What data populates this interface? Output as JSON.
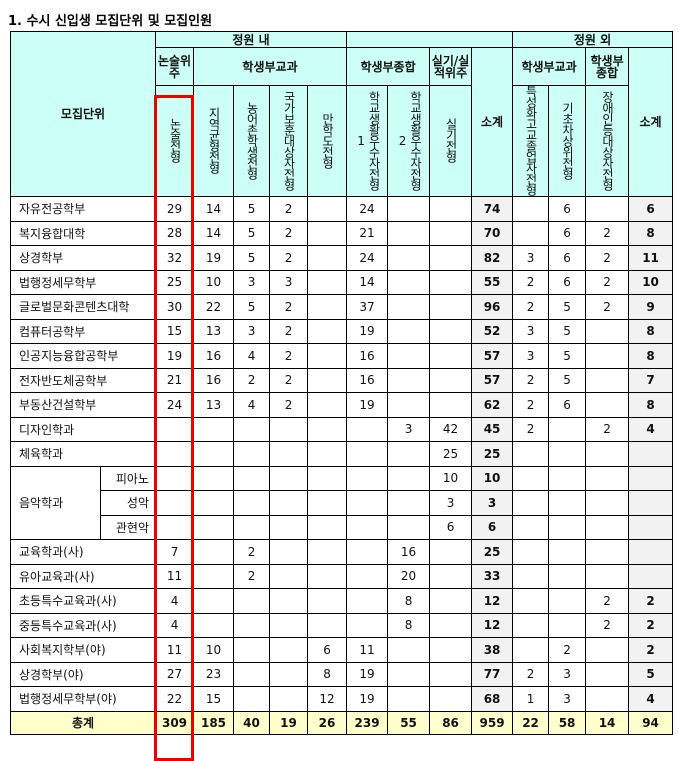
{
  "title": "1. 수시 신입생 모집단위 및 모집인원",
  "header": {
    "unit": "모집단위",
    "in_quota": "정원 내",
    "out_quota": "정원 외",
    "essay_group": "논술위주",
    "record_subject": "학생부교과",
    "record_comprehensive": "학생부종합",
    "practical": "실기/실적위주",
    "subtotal": "소계",
    "out_record_subject": "학생부교과",
    "out_record_comprehensive": "학생부종합",
    "out_subtotal": "소계",
    "cols": [
      "논술전형",
      "지역균형전형",
      "농어촌학생전형",
      "국가보훈대상자전형",
      "만학도전형",
      "학교생활우수자전형1",
      "학교생활우수자전형2",
      "실기전형",
      "특성화고교졸업자전형",
      "기초차상위전형",
      "장애인등대상자전형"
    ]
  },
  "rows": [
    {
      "name": "자유전공학부",
      "v": [
        "29",
        "14",
        "5",
        "2",
        "",
        "24",
        "",
        "",
        "74",
        "",
        "6",
        "",
        "6"
      ]
    },
    {
      "name": "복지융합대학",
      "v": [
        "28",
        "14",
        "5",
        "2",
        "",
        "21",
        "",
        "",
        "70",
        "",
        "6",
        "2",
        "8"
      ]
    },
    {
      "name": "상경학부",
      "v": [
        "32",
        "19",
        "5",
        "2",
        "",
        "24",
        "",
        "",
        "82",
        "3",
        "6",
        "2",
        "11"
      ]
    },
    {
      "name": "법행정세무학부",
      "v": [
        "25",
        "10",
        "3",
        "3",
        "",
        "14",
        "",
        "",
        "55",
        "2",
        "6",
        "2",
        "10"
      ]
    },
    {
      "name": "글로벌문화콘텐츠대학",
      "v": [
        "30",
        "22",
        "5",
        "2",
        "",
        "37",
        "",
        "",
        "96",
        "2",
        "5",
        "2",
        "9"
      ]
    },
    {
      "name": "컴퓨터공학부",
      "v": [
        "15",
        "13",
        "3",
        "2",
        "",
        "19",
        "",
        "",
        "52",
        "3",
        "5",
        "",
        "8"
      ]
    },
    {
      "name": "인공지능융합공학부",
      "v": [
        "19",
        "16",
        "4",
        "2",
        "",
        "16",
        "",
        "",
        "57",
        "3",
        "5",
        "",
        "8"
      ]
    },
    {
      "name": "전자반도체공학부",
      "v": [
        "21",
        "16",
        "2",
        "2",
        "",
        "16",
        "",
        "",
        "57",
        "2",
        "5",
        "",
        "7"
      ]
    },
    {
      "name": "부동산건설학부",
      "v": [
        "24",
        "13",
        "4",
        "2",
        "",
        "19",
        "",
        "",
        "62",
        "2",
        "6",
        "",
        "8"
      ]
    },
    {
      "name": "디자인학과",
      "v": [
        "",
        "",
        "",
        "",
        "",
        "",
        "3",
        "42",
        "45",
        "2",
        "",
        "2",
        "4"
      ]
    },
    {
      "name": "체육학과",
      "v": [
        "",
        "",
        "",
        "",
        "",
        "",
        "",
        "25",
        "25",
        "",
        "",
        "",
        ""
      ]
    },
    {
      "name": "음악학과",
      "sub": "피아노",
      "v": [
        "",
        "",
        "",
        "",
        "",
        "",
        "",
        "10",
        "10",
        "",
        "",
        "",
        ""
      ]
    },
    {
      "name": "",
      "sub": "성악",
      "v": [
        "",
        "",
        "",
        "",
        "",
        "",
        "",
        "3",
        "3",
        "",
        "",
        "",
        ""
      ]
    },
    {
      "name": "",
      "sub": "관현악",
      "v": [
        "",
        "",
        "",
        "",
        "",
        "",
        "",
        "6",
        "6",
        "",
        "",
        "",
        ""
      ]
    },
    {
      "name": "교육학과(사)",
      "v": [
        "7",
        "",
        "2",
        "",
        "",
        "",
        "16",
        "",
        "25",
        "",
        "",
        "",
        ""
      ]
    },
    {
      "name": "유아교육과(사)",
      "v": [
        "11",
        "",
        "2",
        "",
        "",
        "",
        "20",
        "",
        "33",
        "",
        "",
        "",
        ""
      ]
    },
    {
      "name": "초등특수교육과(사)",
      "v": [
        "4",
        "",
        "",
        "",
        "",
        "",
        "8",
        "",
        "12",
        "",
        "",
        "2",
        "2"
      ]
    },
    {
      "name": "중등특수교육과(사)",
      "v": [
        "4",
        "",
        "",
        "",
        "",
        "",
        "8",
        "",
        "12",
        "",
        "",
        "2",
        "2"
      ]
    },
    {
      "name": "사회복지학부(야)",
      "v": [
        "11",
        "10",
        "",
        "",
        "6",
        "11",
        "",
        "",
        "38",
        "",
        "2",
        "",
        "2"
      ]
    },
    {
      "name": "상경학부(야)",
      "v": [
        "27",
        "23",
        "",
        "",
        "8",
        "19",
        "",
        "",
        "77",
        "2",
        "3",
        "",
        "5"
      ]
    },
    {
      "name": "법행정세무학부(야)",
      "v": [
        "22",
        "15",
        "",
        "",
        "12",
        "19",
        "",
        "",
        "68",
        "1",
        "3",
        "",
        "4"
      ]
    }
  ],
  "total": {
    "name": "총계",
    "v": [
      "309",
      "185",
      "40",
      "19",
      "26",
      "239",
      "55",
      "86",
      "959",
      "22",
      "58",
      "14",
      "94"
    ]
  },
  "colors": {
    "header": "#ccfff5",
    "subtotal": "#f2f2f2",
    "total": "#ffffcc",
    "highlight": "#ee0000"
  }
}
